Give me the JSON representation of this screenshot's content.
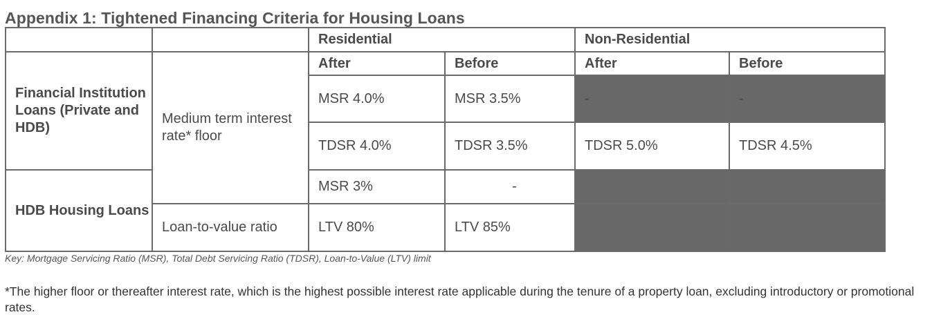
{
  "title": "Appendix 1: Tightened Financing Criteria for Housing Loans",
  "header": {
    "residential": "Residential",
    "non_residential": "Non-Residential",
    "after": "After",
    "before": "Before"
  },
  "rows": {
    "fi_loans": "Financial Institution Loans (Private and HDB)",
    "hdb_loans": "HDB Housing Loans",
    "medium_term": "Medium term interest rate* floor",
    "ltv_ratio": "Loan-to-value ratio"
  },
  "cells": {
    "msr_after": "MSR 4.0%",
    "msr_before": "MSR 3.5%",
    "msr_nonres_after": "-",
    "msr_nonres_before": "-",
    "tdsr_after": "TDSR 4.0%",
    "tdsr_before": "TDSR 3.5%",
    "tdsr_nonres_after": "TDSR 5.0%",
    "tdsr_nonres_before": "TDSR 4.5%",
    "hdb_msr_after": "MSR 3%",
    "hdb_msr_before": "-",
    "ltv_after": "LTV 80%",
    "ltv_before": "LTV 85%"
  },
  "key": "Key: Mortgage Servicing Ratio (MSR), Total Debt Servicing Ratio (TDSR), Loan-to-Value (LTV) limit",
  "footnote": "*The higher floor or thereafter interest rate, which is the highest possible interest rate applicable during the tenure of a property loan, excluding introductory or promotional rates.",
  "colors": {
    "shaded_cell": "#686868",
    "border": "#6a6a6a"
  }
}
